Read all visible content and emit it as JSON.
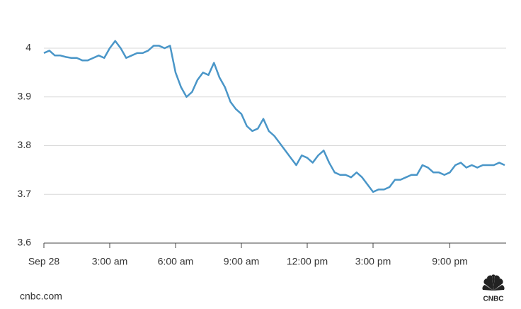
{
  "chart_data": {
    "type": "line",
    "color": "#4a96c8",
    "categories": [
      "Sep 28",
      null,
      null,
      null,
      null,
      null,
      null,
      null,
      null,
      null,
      null,
      null,
      "3:00 am",
      null,
      null,
      null,
      null,
      null,
      null,
      null,
      null,
      null,
      null,
      null,
      "6:00 am",
      null,
      null,
      null,
      null,
      null,
      null,
      null,
      null,
      null,
      null,
      null,
      "9:00 am",
      null,
      null,
      null,
      null,
      null,
      null,
      null,
      null,
      null,
      null,
      null,
      "12:00 pm",
      null,
      null,
      null,
      null,
      null,
      null,
      null,
      null,
      null,
      null,
      null,
      "3:00 pm",
      null,
      null,
      null,
      null,
      null,
      null,
      null,
      null,
      null,
      null,
      null,
      null,
      null,
      "9:00 pm",
      null,
      null,
      null,
      null,
      null,
      null,
      null,
      null,
      null,
      null
    ],
    "values": [
      3.99,
      3.995,
      3.985,
      3.985,
      3.982,
      3.98,
      3.98,
      3.975,
      3.975,
      3.98,
      3.985,
      3.98,
      4.0,
      4.015,
      4.0,
      3.98,
      3.985,
      3.99,
      3.99,
      3.995,
      4.005,
      4.005,
      4.0,
      4.005,
      3.95,
      3.92,
      3.9,
      3.91,
      3.935,
      3.95,
      3.945,
      3.97,
      3.94,
      3.92,
      3.89,
      3.875,
      3.865,
      3.84,
      3.83,
      3.835,
      3.855,
      3.83,
      3.82,
      3.805,
      3.79,
      3.775,
      3.76,
      3.78,
      3.775,
      3.765,
      3.78,
      3.79,
      3.765,
      3.745,
      3.74,
      3.74,
      3.735,
      3.745,
      3.735,
      3.72,
      3.705,
      3.71,
      3.71,
      3.715,
      3.73,
      3.73,
      3.735,
      3.74,
      3.74,
      3.76,
      3.755,
      3.745,
      3.745,
      3.74,
      3.745,
      3.76,
      3.765,
      3.755,
      3.76,
      3.755,
      3.76,
      3.76,
      3.76,
      3.765,
      3.76
    ],
    "ylim": [
      3.6,
      4.04
    ],
    "yticks": [
      3.6,
      3.7,
      3.8,
      3.9,
      4
    ],
    "grid": true
  },
  "footer": {
    "source": "cnbc.com",
    "logo": "CNBC"
  }
}
